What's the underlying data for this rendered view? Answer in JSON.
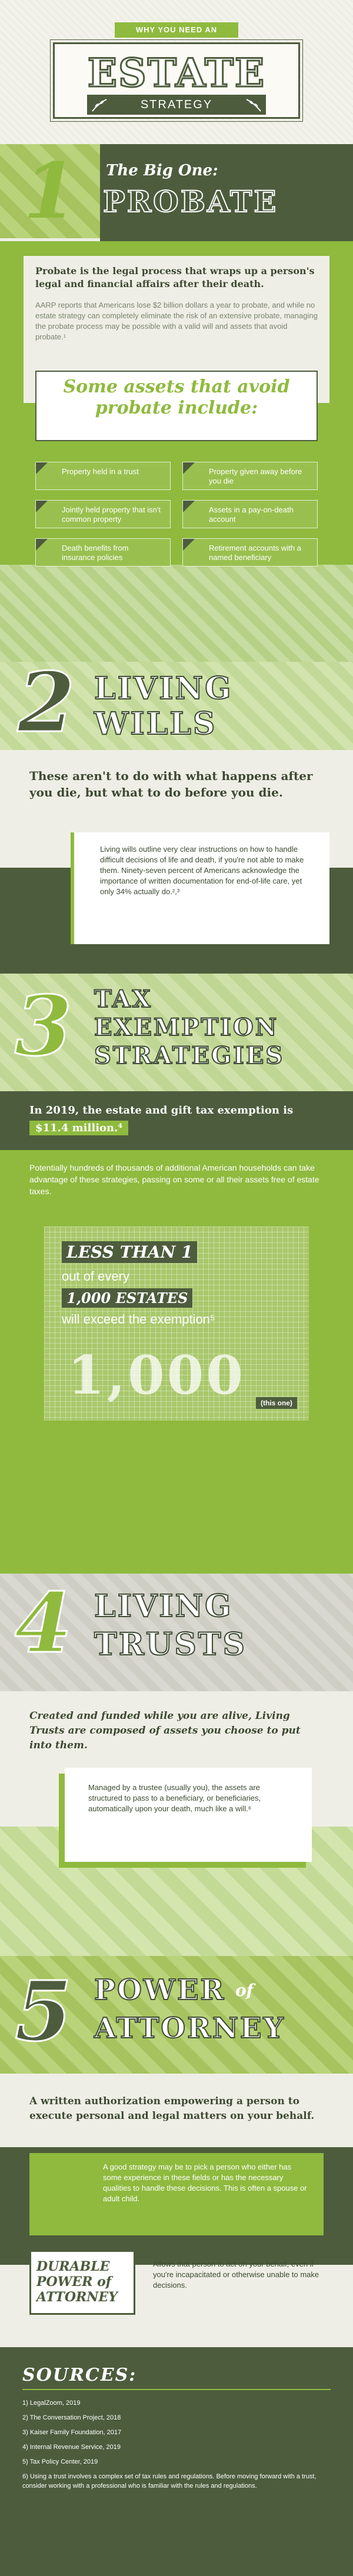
{
  "header": {
    "ribbon": "WHY YOU NEED AN",
    "title": "ESTATE",
    "subtitle": "STRATEGY"
  },
  "s1": {
    "number": "1",
    "kicker": "The Big One:",
    "title": "PROBATE",
    "lead": "Probate is the legal process that wraps up a person's legal and financial affairs after their death.",
    "detail": "AARP reports that Americans lose $2 billion dollars a year to probate, and while no estate strategy can completely eliminate the risk of an extensive probate, managing the probate process may be possible with a valid will and assets that avoid probate.¹",
    "assets_heading": "Some assets that avoid probate include:",
    "assets": [
      "Property held in a trust",
      "Property given away before you die",
      "Jointly held property that isn't common property",
      "Assets in a pay-on-death account",
      "Death benefits from insurance policies",
      "Retirement accounts with a named beneficiary"
    ]
  },
  "s2": {
    "number": "2",
    "title_1": "LIVING",
    "title_2": "WILLS",
    "lead": "These aren't to do with what happens after you die, but what to do before you die.",
    "detail": "Living wills outline very clear instructions on how to handle difficult decisions of life and death, if you're not able to make them. Ninety-seven percent of Americans acknowledge the importance of written documentation for end-of-life care, yet only 34% actually do.²,³"
  },
  "s3": {
    "number": "3",
    "title_1": "TAX",
    "title_2": "EXEMPTION",
    "title_3": "STRATEGIES",
    "lead_a": "In 2019, the estate and gift tax exemption is",
    "lead_b": "$11.4 million.⁴",
    "detail": "Potentially hundreds of thousands of additional American households can take advantage of these strategies, passing on some or all their assets free of estate taxes.",
    "ratio_1": "LESS THAN 1",
    "ratio_2": "out of every",
    "ratio_3": "1,000 ESTATES",
    "ratio_4": "will exceed the exemption⁵",
    "ratio_big": "1,000",
    "ratio_tag": "(this one)"
  },
  "s4": {
    "number": "4",
    "title_1": "LIVING",
    "title_2": "TRUSTS",
    "lead": "Created and funded while you are alive, Living Trusts are composed of assets you choose to put into them.",
    "detail": "Managed by a trustee (usually you), the assets are structured to pass to a beneficiary, or beneficiaries, automatically upon your death, much like a will.⁶"
  },
  "s5": {
    "number": "5",
    "title_1": "POWER",
    "title_of": "of",
    "title_2": "ATTORNEY",
    "lead": "A written authorization empowering a person to execute personal and legal matters on your behalf.",
    "detail": "A good strategy may be to pick a person who either has some experience in these fields or has the necessary qualities to handle these decisions. This is often a spouse or adult child.",
    "durable_label": "DURABLE POWER of ATTORNEY",
    "durable_text": "Allows that person to act on your behalf, even if you're incapacitated or otherwise unable to make decisions."
  },
  "sources": {
    "heading": "SOURCES:",
    "items": [
      "1) LegalZoom, 2019",
      "2) The Conversation Project, 2018",
      "3) Kaiser Family Foundation, 2017",
      "4) Internal Revenue Service, 2019",
      "5) Tax Policy Center, 2019",
      "6) Using a trust involves a complex set of tax rules and regulations. Before moving forward with a trust, consider working with a professional who is familiar with the rules and regulations."
    ]
  }
}
